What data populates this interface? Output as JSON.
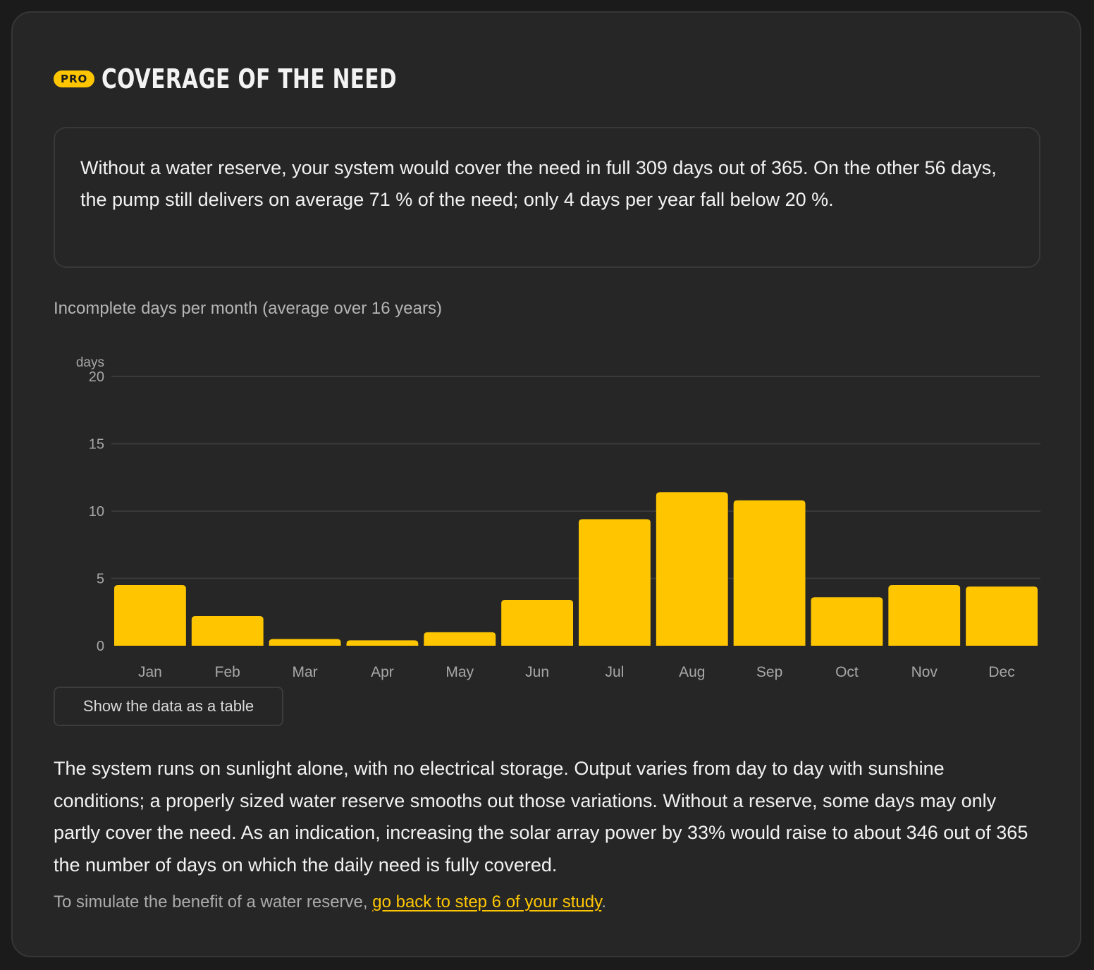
{
  "header": {
    "badge": "PRO",
    "title": "Coverage of the need"
  },
  "summary": {
    "text": "Without a water reserve, your system would cover the need in full 309 days out of 365. On the other 56 days, the pump still delivers on average 71 % of the need; only 4 days per year fall below 20 %."
  },
  "chart_data": {
    "type": "bar",
    "title": "Incomplete days per month (average over 16 years)",
    "ylabel": "days",
    "xlabel": "",
    "categories": [
      "Jan",
      "Feb",
      "Mar",
      "Apr",
      "May",
      "Jun",
      "Jul",
      "Aug",
      "Sep",
      "Oct",
      "Nov",
      "Dec"
    ],
    "values": [
      4.5,
      2.2,
      0.5,
      0.4,
      1.0,
      3.4,
      9.4,
      11.4,
      10.8,
      3.6,
      4.5,
      4.4
    ],
    "ylim": [
      0,
      20
    ],
    "yticks": [
      0,
      5,
      10,
      15,
      20
    ],
    "grid": true,
    "color": "#ffc600"
  },
  "actions": {
    "show_table_label": "Show the data as a table"
  },
  "explanation": {
    "text": "The system runs on sunlight alone, with no electrical storage. Output varies from day to day with sunshine conditions; a properly sized water reserve smooths out those variations. Without a reserve, some days may only partly cover the need. As an indication, increasing the solar array power by 33% would raise to about 346 out of 365 the number of days on which the daily need is fully covered."
  },
  "footnote": {
    "prefix": "To simulate the benefit of a water reserve, ",
    "link_text": "go back to step 6 of your study",
    "suffix": "."
  },
  "colors": {
    "accent": "#ffc600",
    "card_background": "#262626",
    "page_background": "#1b1b1b"
  }
}
